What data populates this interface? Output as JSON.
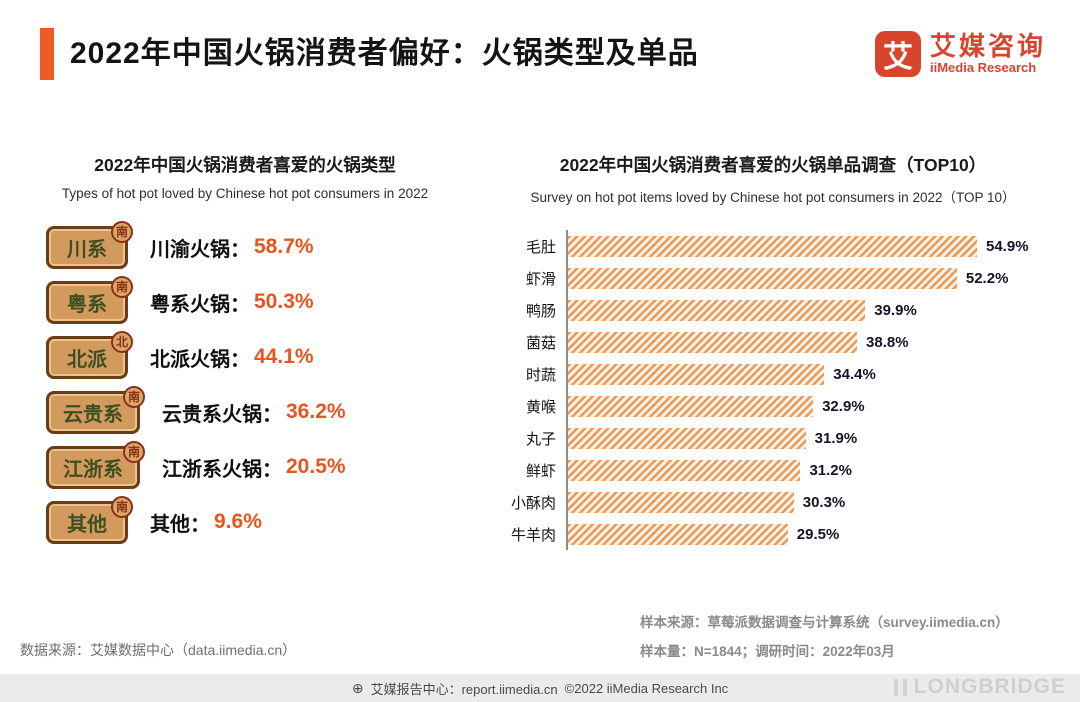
{
  "header": {
    "title": "2022年中国火锅消费者偏好：火锅类型及单品",
    "logo": {
      "mark": "艾",
      "brand_cn": "艾媒咨询",
      "brand_en": "iiMedia Research"
    }
  },
  "left_chart": {
    "title": "2022年中国火锅消费者喜爱的火锅类型",
    "subtitle": "Types of hot pot loved by Chinese hot pot consumers in 2022",
    "items": [
      {
        "plaque": "川系",
        "badge": "南",
        "label": "川渝火锅：",
        "value": "58.7%"
      },
      {
        "plaque": "粤系",
        "badge": "南",
        "label": "粤系火锅：",
        "value": "50.3%"
      },
      {
        "plaque": "北派",
        "badge": "北",
        "label": "北派火锅：",
        "value": "44.1%"
      },
      {
        "plaque": "云贵系",
        "badge": "南",
        "label": "云贵系火锅：",
        "value": "36.2%"
      },
      {
        "plaque": "江浙系",
        "badge": "南",
        "label": "江浙系火锅：",
        "value": "20.5%"
      },
      {
        "plaque": "其他",
        "badge": "南",
        "label": "其他：",
        "value": "9.6%"
      }
    ]
  },
  "right_chart": {
    "title": "2022年中国火锅消费者喜爱的火锅单品调查（TOP10）",
    "subtitle": "Survey on hot pot items loved by Chinese hot pot consumers in 2022（TOP 10）",
    "items": [
      {
        "name": "毛肚",
        "value": 54.9,
        "display": "54.9%"
      },
      {
        "name": "虾滑",
        "value": 52.2,
        "display": "52.2%"
      },
      {
        "name": "鸭肠",
        "value": 39.9,
        "display": "39.9%"
      },
      {
        "name": "菌菇",
        "value": 38.8,
        "display": "38.8%"
      },
      {
        "name": "时蔬",
        "value": 34.4,
        "display": "34.4%"
      },
      {
        "name": "黄喉",
        "value": 32.9,
        "display": "32.9%"
      },
      {
        "name": "丸子",
        "value": 31.9,
        "display": "31.9%"
      },
      {
        "name": "鲜虾",
        "value": 31.2,
        "display": "31.2%"
      },
      {
        "name": "小酥肉",
        "value": 30.3,
        "display": "30.3%"
      },
      {
        "name": "牛羊肉",
        "value": 29.5,
        "display": "29.5%"
      }
    ]
  },
  "chart_data": [
    {
      "type": "bar",
      "orientation": "horizontal",
      "title": "2022年中国火锅消费者喜爱的火锅类型",
      "subtitle": "Types of hot pot loved by Chinese hot pot consumers in 2022",
      "categories": [
        "川渝火锅",
        "粤系火锅",
        "北派火锅",
        "云贵系火锅",
        "江浙系火锅",
        "其他"
      ],
      "values": [
        58.7,
        50.3,
        44.1,
        36.2,
        20.5,
        9.6
      ],
      "unit": "%"
    },
    {
      "type": "bar",
      "orientation": "horizontal",
      "title": "2022年中国火锅消费者喜爱的火锅单品调查（TOP10）",
      "subtitle": "Survey on hot pot items loved by Chinese hot pot consumers in 2022（TOP 10）",
      "categories": [
        "毛肚",
        "虾滑",
        "鸭肠",
        "菌菇",
        "时蔬",
        "黄喉",
        "丸子",
        "鲜虾",
        "小酥肉",
        "牛羊肉"
      ],
      "values": [
        54.9,
        52.2,
        39.9,
        38.8,
        34.4,
        32.9,
        31.9,
        31.2,
        30.3,
        29.5
      ],
      "xlim": [
        0,
        60
      ],
      "unit": "%",
      "grid": false,
      "legend": false
    }
  ],
  "footnotes": {
    "source_left": "数据来源：艾媒数据中心（data.iimedia.cn）",
    "sample_source": "样本来源：草莓派数据调查与计算系统（survey.iimedia.cn）",
    "sample_info": "样本量：N=1844；调研时间：2022年03月"
  },
  "footer": {
    "icon": "⊕",
    "center_left": "艾媒报告中心：report.iimedia.cn",
    "center_right": "©2022  iiMedia Research Inc"
  },
  "watermark": {
    "text": "LONGBRIDGE"
  },
  "colors": {
    "accent_orange": "#ed5a24",
    "brand_red": "#d9442c",
    "value_orange": "#e8541e",
    "bar_hatch_orange": "#e9995b",
    "plaque_bg": "#d29a5d",
    "plaque_border": "#6b3d16",
    "footer_bg": "#ebebeb"
  }
}
